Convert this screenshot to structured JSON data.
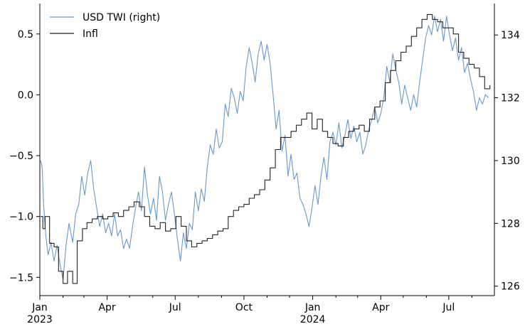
{
  "chart_data": {
    "type": "line",
    "title": "",
    "xlabel": "",
    "ylabel": "",
    "x_ticks": [
      {
        "date": "2023-01-01",
        "label": "Jan",
        "sublabel": "2023"
      },
      {
        "date": "2023-04-01",
        "label": "Apr",
        "sublabel": ""
      },
      {
        "date": "2023-07-01",
        "label": "Jul",
        "sublabel": ""
      },
      {
        "date": "2023-10-01",
        "label": "Oct",
        "sublabel": ""
      },
      {
        "date": "2024-01-01",
        "label": "Jan",
        "sublabel": "2024"
      },
      {
        "date": "2024-04-01",
        "label": "Apr",
        "sublabel": ""
      },
      {
        "date": "2024-07-01",
        "label": "Jul",
        "sublabel": ""
      }
    ],
    "xlim": [
      "2023-01-01",
      "2024-08-31"
    ],
    "y_left": {
      "ylim": [
        -1.65,
        0.75
      ],
      "ticks": [
        -1.5,
        -1.0,
        -0.5,
        0.0,
        0.5
      ],
      "tick_labels": [
        "−1.5",
        "−1.0",
        "−0.5",
        "0.0",
        "0.5"
      ]
    },
    "y_right": {
      "ylim": [
        125.7,
        135.0
      ],
      "ticks": [
        126,
        128,
        130,
        132,
        134
      ],
      "tick_labels": [
        "126",
        "128",
        "130",
        "132",
        "134"
      ]
    },
    "legend": {
      "position": "top-left",
      "entries": [
        "USD TWI (right)",
        "Infl"
      ]
    },
    "grid": false,
    "series": [
      {
        "name": "USD TWI (right)",
        "axis": "right",
        "color": "#6699cc",
        "points": [
          [
            "2023-01-02",
            130.0
          ],
          [
            "2023-01-04",
            129.8
          ],
          [
            "2023-01-06",
            128.6
          ],
          [
            "2023-01-09",
            127.6
          ],
          [
            "2023-01-12",
            127.0
          ],
          [
            "2023-01-16",
            127.4
          ],
          [
            "2023-01-20",
            126.8
          ],
          [
            "2023-01-24",
            127.3
          ],
          [
            "2023-01-28",
            126.7
          ],
          [
            "2023-02-01",
            126.2
          ],
          [
            "2023-02-05",
            127.3
          ],
          [
            "2023-02-09",
            128.0
          ],
          [
            "2023-02-14",
            127.4
          ],
          [
            "2023-02-18",
            128.3
          ],
          [
            "2023-02-22",
            128.6
          ],
          [
            "2023-02-26",
            129.5
          ],
          [
            "2023-03-02",
            128.9
          ],
          [
            "2023-03-06",
            129.6
          ],
          [
            "2023-03-10",
            130.0
          ],
          [
            "2023-03-14",
            129.1
          ],
          [
            "2023-03-18",
            128.5
          ],
          [
            "2023-03-22",
            127.9
          ],
          [
            "2023-03-26",
            128.3
          ],
          [
            "2023-03-30",
            127.7
          ],
          [
            "2023-04-03",
            128.0
          ],
          [
            "2023-04-07",
            127.6
          ],
          [
            "2023-04-11",
            128.3
          ],
          [
            "2023-04-15",
            127.6
          ],
          [
            "2023-04-19",
            127.8
          ],
          [
            "2023-04-23",
            127.2
          ],
          [
            "2023-04-27",
            127.5
          ],
          [
            "2023-05-01",
            127.2
          ],
          [
            "2023-05-05",
            127.9
          ],
          [
            "2023-05-09",
            128.5
          ],
          [
            "2023-05-13",
            129.0
          ],
          [
            "2023-05-17",
            128.4
          ],
          [
            "2023-05-21",
            129.8
          ],
          [
            "2023-05-25",
            128.9
          ],
          [
            "2023-05-29",
            128.3
          ],
          [
            "2023-06-02",
            128.8
          ],
          [
            "2023-06-06",
            128.1
          ],
          [
            "2023-06-10",
            129.5
          ],
          [
            "2023-06-14",
            129.0
          ],
          [
            "2023-06-18",
            128.1
          ],
          [
            "2023-06-22",
            128.6
          ],
          [
            "2023-06-26",
            129.0
          ],
          [
            "2023-06-30",
            128.3
          ],
          [
            "2023-07-04",
            127.5
          ],
          [
            "2023-07-08",
            126.8
          ],
          [
            "2023-07-12",
            127.7
          ],
          [
            "2023-07-16",
            127.2
          ],
          [
            "2023-07-20",
            128.0
          ],
          [
            "2023-07-24",
            127.8
          ],
          [
            "2023-07-28",
            129.0
          ],
          [
            "2023-08-01",
            128.4
          ],
          [
            "2023-08-05",
            129.1
          ],
          [
            "2023-08-09",
            128.7
          ],
          [
            "2023-08-13",
            129.8
          ],
          [
            "2023-08-17",
            130.5
          ],
          [
            "2023-08-21",
            130.2
          ],
          [
            "2023-08-25",
            131.0
          ],
          [
            "2023-08-29",
            130.4
          ],
          [
            "2023-09-02",
            130.6
          ],
          [
            "2023-09-06",
            131.8
          ],
          [
            "2023-09-10",
            131.4
          ],
          [
            "2023-09-14",
            132.3
          ],
          [
            "2023-09-18",
            132.0
          ],
          [
            "2023-09-22",
            131.5
          ],
          [
            "2023-09-26",
            132.2
          ],
          [
            "2023-09-30",
            131.9
          ],
          [
            "2023-10-04",
            133.0
          ],
          [
            "2023-10-08",
            133.6
          ],
          [
            "2023-10-12",
            133.1
          ],
          [
            "2023-10-16",
            132.5
          ],
          [
            "2023-10-20",
            133.4
          ],
          [
            "2023-10-24",
            133.8
          ],
          [
            "2023-10-28",
            133.2
          ],
          [
            "2023-11-01",
            133.7
          ],
          [
            "2023-11-05",
            133.1
          ],
          [
            "2023-11-09",
            132.1
          ],
          [
            "2023-11-13",
            131.0
          ],
          [
            "2023-11-17",
            131.6
          ],
          [
            "2023-11-21",
            130.3
          ],
          [
            "2023-11-25",
            130.8
          ],
          [
            "2023-11-29",
            129.5
          ],
          [
            "2023-12-03",
            130.2
          ],
          [
            "2023-12-07",
            129.4
          ],
          [
            "2023-12-11",
            129.6
          ],
          [
            "2023-12-15",
            128.8
          ],
          [
            "2023-12-19",
            128.6
          ],
          [
            "2023-12-23",
            128.3
          ],
          [
            "2023-12-27",
            127.9
          ],
          [
            "2023-12-31",
            128.5
          ],
          [
            "2024-01-04",
            129.2
          ],
          [
            "2024-01-08",
            128.6
          ],
          [
            "2024-01-12",
            129.5
          ],
          [
            "2024-01-16",
            130.1
          ],
          [
            "2024-01-20",
            129.4
          ],
          [
            "2024-01-24",
            130.6
          ],
          [
            "2024-01-28",
            130.9
          ],
          [
            "2024-02-01",
            130.5
          ],
          [
            "2024-02-05",
            131.2
          ],
          [
            "2024-02-09",
            130.4
          ],
          [
            "2024-02-13",
            130.8
          ],
          [
            "2024-02-17",
            131.3
          ],
          [
            "2024-02-21",
            130.7
          ],
          [
            "2024-02-25",
            131.1
          ],
          [
            "2024-02-29",
            130.6
          ],
          [
            "2024-03-04",
            130.9
          ],
          [
            "2024-03-08",
            130.2
          ],
          [
            "2024-03-12",
            130.5
          ],
          [
            "2024-03-16",
            131.0
          ],
          [
            "2024-03-20",
            131.3
          ],
          [
            "2024-03-24",
            131.7
          ],
          [
            "2024-03-28",
            131.2
          ],
          [
            "2024-04-01",
            131.5
          ],
          [
            "2024-04-05",
            132.0
          ],
          [
            "2024-04-09",
            133.0
          ],
          [
            "2024-04-13",
            132.5
          ],
          [
            "2024-04-17",
            133.4
          ],
          [
            "2024-04-21",
            132.9
          ],
          [
            "2024-04-25",
            132.5
          ],
          [
            "2024-04-29",
            131.8
          ],
          [
            "2024-05-03",
            132.4
          ],
          [
            "2024-05-07",
            132.0
          ],
          [
            "2024-05-11",
            131.6
          ],
          [
            "2024-05-15",
            132.1
          ],
          [
            "2024-05-19",
            131.7
          ],
          [
            "2024-05-23",
            132.5
          ],
          [
            "2024-05-27",
            133.2
          ],
          [
            "2024-05-31",
            133.9
          ],
          [
            "2024-06-04",
            134.3
          ],
          [
            "2024-06-08",
            134.0
          ],
          [
            "2024-06-12",
            134.6
          ],
          [
            "2024-06-16",
            134.1
          ],
          [
            "2024-06-20",
            134.5
          ],
          [
            "2024-06-24",
            133.8
          ],
          [
            "2024-06-28",
            134.6
          ],
          [
            "2024-07-02",
            134.0
          ],
          [
            "2024-07-06",
            133.5
          ],
          [
            "2024-07-10",
            133.9
          ],
          [
            "2024-07-14",
            133.2
          ],
          [
            "2024-07-18",
            133.6
          ],
          [
            "2024-07-22",
            132.8
          ],
          [
            "2024-07-26",
            133.1
          ],
          [
            "2024-07-30",
            132.6
          ],
          [
            "2024-08-03",
            132.2
          ],
          [
            "2024-08-07",
            131.6
          ],
          [
            "2024-08-11",
            132.0
          ],
          [
            "2024-08-15",
            131.8
          ],
          [
            "2024-08-19",
            132.1
          ],
          [
            "2024-08-23",
            132.0
          ]
        ]
      },
      {
        "name": "Infl",
        "axis": "left",
        "color": "#222222",
        "step": true,
        "points": [
          [
            "2023-01-02",
            -1.0
          ],
          [
            "2023-01-05",
            -1.1
          ],
          [
            "2023-01-08",
            -1.0
          ],
          [
            "2023-01-14",
            -1.22
          ],
          [
            "2023-01-20",
            -1.25
          ],
          [
            "2023-01-26",
            -1.45
          ],
          [
            "2023-02-01",
            -1.55
          ],
          [
            "2023-02-07",
            -1.45
          ],
          [
            "2023-02-14",
            -1.55
          ],
          [
            "2023-02-20",
            -1.2
          ],
          [
            "2023-02-27",
            -1.1
          ],
          [
            "2023-03-05",
            -1.05
          ],
          [
            "2023-03-12",
            -1.02
          ],
          [
            "2023-03-19",
            -1.0
          ],
          [
            "2023-03-26",
            -1.02
          ],
          [
            "2023-04-02",
            -1.0
          ],
          [
            "2023-04-09",
            -0.97
          ],
          [
            "2023-04-16",
            -1.0
          ],
          [
            "2023-04-23",
            -0.95
          ],
          [
            "2023-04-30",
            -0.92
          ],
          [
            "2023-05-07",
            -0.88
          ],
          [
            "2023-05-14",
            -0.92
          ],
          [
            "2023-05-21",
            -1.0
          ],
          [
            "2023-05-28",
            -1.08
          ],
          [
            "2023-06-04",
            -1.1
          ],
          [
            "2023-06-11",
            -1.05
          ],
          [
            "2023-06-18",
            -1.12
          ],
          [
            "2023-06-25",
            -1.1
          ],
          [
            "2023-07-02",
            -1.0
          ],
          [
            "2023-07-09",
            -1.08
          ],
          [
            "2023-07-16",
            -1.2
          ],
          [
            "2023-07-23",
            -1.25
          ],
          [
            "2023-07-30",
            -1.22
          ],
          [
            "2023-08-06",
            -1.2
          ],
          [
            "2023-08-13",
            -1.18
          ],
          [
            "2023-08-20",
            -1.15
          ],
          [
            "2023-08-27",
            -1.12
          ],
          [
            "2023-09-03",
            -1.1
          ],
          [
            "2023-09-10",
            -1.0
          ],
          [
            "2023-09-17",
            -0.95
          ],
          [
            "2023-09-24",
            -0.92
          ],
          [
            "2023-10-01",
            -0.9
          ],
          [
            "2023-10-08",
            -0.85
          ],
          [
            "2023-10-15",
            -0.82
          ],
          [
            "2023-10-22",
            -0.78
          ],
          [
            "2023-10-29",
            -0.7
          ],
          [
            "2023-11-05",
            -0.6
          ],
          [
            "2023-11-12",
            -0.45
          ],
          [
            "2023-11-19",
            -0.35
          ],
          [
            "2023-11-26",
            -0.35
          ],
          [
            "2023-12-03",
            -0.3
          ],
          [
            "2023-12-10",
            -0.25
          ],
          [
            "2023-12-17",
            -0.2
          ],
          [
            "2023-12-24",
            -0.15
          ],
          [
            "2023-12-31",
            -0.28
          ],
          [
            "2024-01-07",
            -0.2
          ],
          [
            "2024-01-14",
            -0.3
          ],
          [
            "2024-01-21",
            -0.35
          ],
          [
            "2024-01-28",
            -0.4
          ],
          [
            "2024-02-04",
            -0.42
          ],
          [
            "2024-02-11",
            -0.35
          ],
          [
            "2024-02-18",
            -0.3
          ],
          [
            "2024-02-25",
            -0.28
          ],
          [
            "2024-03-03",
            -0.25
          ],
          [
            "2024-03-10",
            -0.3
          ],
          [
            "2024-03-17",
            -0.2
          ],
          [
            "2024-03-24",
            -0.1
          ],
          [
            "2024-03-31",
            -0.05
          ],
          [
            "2024-04-07",
            0.1
          ],
          [
            "2024-04-14",
            0.2
          ],
          [
            "2024-04-21",
            0.28
          ],
          [
            "2024-04-28",
            0.35
          ],
          [
            "2024-05-05",
            0.4
          ],
          [
            "2024-05-12",
            0.48
          ],
          [
            "2024-05-19",
            0.55
          ],
          [
            "2024-05-26",
            0.62
          ],
          [
            "2024-06-02",
            0.66
          ],
          [
            "2024-06-09",
            0.62
          ],
          [
            "2024-06-16",
            0.6
          ],
          [
            "2024-06-23",
            0.55
          ],
          [
            "2024-06-30",
            0.55
          ],
          [
            "2024-07-07",
            0.5
          ],
          [
            "2024-07-14",
            0.35
          ],
          [
            "2024-07-21",
            0.3
          ],
          [
            "2024-07-28",
            0.25
          ],
          [
            "2024-08-04",
            0.22
          ],
          [
            "2024-08-11",
            0.15
          ],
          [
            "2024-08-18",
            0.05
          ],
          [
            "2024-08-25",
            0.08
          ]
        ]
      }
    ]
  }
}
